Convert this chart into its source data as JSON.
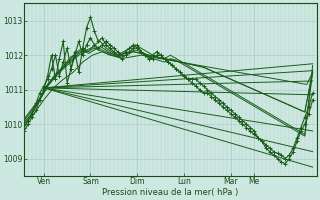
{
  "xlabel": "Pression niveau de la mer( hPa )",
  "background_color": "#cce8e0",
  "plot_bg_color": "#cce8e0",
  "grid_color": "#b0cccc",
  "line_color": "#1a5c1a",
  "ylim": [
    1008.5,
    1013.5
  ],
  "xlim": [
    0,
    150
  ],
  "day_ticks_x": [
    10,
    34,
    58,
    82,
    106,
    118
  ],
  "day_labels": [
    "Ven",
    "Sam",
    "Dim",
    "Lun",
    "Mar",
    "Me"
  ],
  "yticks": [
    1009,
    1010,
    1011,
    1012,
    1013
  ],
  "converge_x": 10,
  "converge_y": 1011.05,
  "fan_ends": [
    1011.55,
    1011.75,
    1011.25,
    1010.85,
    1009.8,
    1009.2,
    1008.75
  ],
  "fan_end_x": 148,
  "ensemble_lines": [
    {
      "pts_x": [
        0,
        2,
        4,
        6,
        8,
        10,
        12,
        14,
        16,
        18,
        20,
        22,
        24,
        26,
        28,
        30,
        32,
        34,
        36,
        38,
        40,
        42,
        44,
        46,
        48,
        50,
        52,
        54,
        56,
        58,
        60,
        62,
        64,
        66,
        68,
        70,
        72,
        74,
        76,
        78,
        80,
        82,
        84,
        86,
        88,
        90,
        92,
        94,
        96,
        98,
        100,
        102,
        104,
        106,
        108,
        110,
        112,
        114,
        116,
        118,
        120,
        122,
        124,
        126,
        128,
        130,
        132,
        134,
        136,
        138,
        140,
        142,
        144,
        146,
        148
      ],
      "pts_y": [
        1009.8,
        1010.0,
        1010.2,
        1010.4,
        1010.7,
        1011.0,
        1011.4,
        1012.0,
        1011.3,
        1011.9,
        1012.4,
        1011.2,
        1011.6,
        1012.1,
        1011.5,
        1012.2,
        1012.8,
        1013.1,
        1012.7,
        1012.4,
        1012.5,
        1012.3,
        1012.2,
        1012.1,
        1012.0,
        1011.9,
        1012.0,
        1012.1,
        1012.2,
        1012.3,
        1012.1,
        1012.0,
        1011.9,
        1011.9,
        1012.0,
        1012.0,
        1011.9,
        1011.8,
        1011.7,
        1011.6,
        1011.5,
        1011.4,
        1011.3,
        1011.3,
        1011.3,
        1011.2,
        1011.1,
        1011.0,
        1010.9,
        1010.8,
        1010.7,
        1010.6,
        1010.5,
        1010.4,
        1010.3,
        1010.2,
        1010.1,
        1010.0,
        1009.9,
        1009.8,
        1009.6,
        1009.5,
        1009.3,
        1009.2,
        1009.1,
        1009.0,
        1008.9,
        1008.85,
        1009.0,
        1009.2,
        1009.5,
        1009.8,
        1010.0,
        1010.3,
        1010.7
      ],
      "marker": true
    },
    {
      "pts_x": [
        0,
        2,
        4,
        6,
        8,
        10,
        12,
        14,
        16,
        18,
        20,
        22,
        24,
        26,
        28,
        30,
        32,
        34,
        36,
        38,
        40,
        42,
        44,
        46,
        48,
        50,
        52,
        54,
        56,
        58,
        60,
        62,
        64,
        66,
        68,
        70,
        72,
        74,
        76,
        78,
        80,
        82,
        84,
        86,
        88,
        90,
        92,
        94,
        96,
        98,
        100,
        102,
        104,
        106,
        108,
        110,
        112,
        114,
        116,
        118,
        120,
        122,
        124,
        126,
        128,
        130,
        132,
        134,
        136,
        138,
        140,
        142,
        144,
        146,
        148
      ],
      "pts_y": [
        1009.9,
        1010.1,
        1010.3,
        1010.6,
        1010.9,
        1011.1,
        1011.3,
        1011.6,
        1012.0,
        1011.4,
        1011.8,
        1012.2,
        1011.6,
        1012.0,
        1012.4,
        1012.0,
        1012.3,
        1012.5,
        1012.3,
        1012.2,
        1012.3,
        1012.4,
        1012.3,
        1012.2,
        1012.1,
        1012.0,
        1012.1,
        1012.2,
        1012.3,
        1012.2,
        1012.1,
        1012.0,
        1011.9,
        1012.0,
        1012.1,
        1012.0,
        1011.9,
        1011.8,
        1011.7,
        1011.6,
        1011.5,
        1011.4,
        1011.3,
        1011.2,
        1011.1,
        1011.0,
        1010.9,
        1010.9,
        1010.8,
        1010.7,
        1010.6,
        1010.5,
        1010.4,
        1010.3,
        1010.2,
        1010.1,
        1010.0,
        1009.9,
        1009.8,
        1009.7,
        1009.6,
        1009.5,
        1009.4,
        1009.3,
        1009.2,
        1009.15,
        1009.1,
        1009.0,
        1009.1,
        1009.3,
        1009.6,
        1009.9,
        1010.2,
        1010.5,
        1010.9
      ],
      "marker": true
    },
    {
      "pts_x": [
        0,
        3,
        6,
        9,
        12,
        15,
        18,
        21,
        24,
        27,
        30,
        33,
        36,
        39,
        42,
        45,
        48,
        51,
        54,
        57,
        60,
        63,
        66,
        69,
        72,
        75,
        78,
        81,
        84,
        87,
        90,
        93,
        96,
        99,
        102,
        105,
        108,
        111,
        114,
        117,
        120,
        123,
        126,
        129,
        132,
        135,
        138,
        141,
        144,
        148
      ],
      "pts_y": [
        1010.0,
        1010.2,
        1010.5,
        1010.8,
        1011.1,
        1011.3,
        1011.5,
        1011.7,
        1011.9,
        1012.1,
        1012.2,
        1012.1,
        1012.3,
        1012.4,
        1012.2,
        1012.1,
        1012.0,
        1012.1,
        1012.2,
        1012.3,
        1012.2,
        1012.1,
        1012.0,
        1011.9,
        1011.9,
        1012.0,
        1011.9,
        1011.8,
        1011.7,
        1011.6,
        1011.5,
        1011.4,
        1011.3,
        1011.2,
        1011.1,
        1011.0,
        1010.9,
        1010.8,
        1010.7,
        1010.6,
        1010.5,
        1010.4,
        1010.3,
        1010.2,
        1010.1,
        1010.0,
        1009.9,
        1009.8,
        1009.7,
        1011.5
      ],
      "marker": false
    },
    {
      "pts_x": [
        0,
        3,
        6,
        9,
        12,
        15,
        18,
        21,
        24,
        27,
        30,
        33,
        36,
        39,
        42,
        45,
        48,
        51,
        54,
        57,
        60,
        63,
        66,
        69,
        72,
        75,
        78,
        81,
        84,
        87,
        90,
        93,
        96,
        99,
        102,
        105,
        108,
        111,
        114,
        117,
        120,
        123,
        126,
        129,
        132,
        135,
        138,
        141,
        144,
        148
      ],
      "pts_y": [
        1010.05,
        1010.25,
        1010.55,
        1010.85,
        1011.15,
        1011.35,
        1011.55,
        1011.75,
        1011.95,
        1012.05,
        1012.15,
        1012.05,
        1012.15,
        1012.25,
        1012.15,
        1012.05,
        1011.95,
        1012.05,
        1012.1,
        1012.15,
        1012.1,
        1012.0,
        1011.9,
        1011.85,
        1011.8,
        1011.9,
        1011.85,
        1011.75,
        1011.65,
        1011.55,
        1011.45,
        1011.35,
        1011.25,
        1011.15,
        1011.05,
        1010.95,
        1010.85,
        1010.75,
        1010.65,
        1010.55,
        1010.45,
        1010.35,
        1010.25,
        1010.15,
        1010.05,
        1009.95,
        1009.85,
        1009.75,
        1009.65,
        1011.7
      ],
      "marker": false
    },
    {
      "pts_x": [
        0,
        4,
        8,
        12,
        16,
        20,
        24,
        28,
        32,
        36,
        40,
        44,
        48,
        52,
        56,
        60,
        64,
        68,
        72,
        76,
        80,
        84,
        88,
        92,
        96,
        100,
        104,
        108,
        112,
        116,
        120,
        124,
        128,
        132,
        136,
        140,
        144,
        148
      ],
      "pts_y": [
        1010.1,
        1010.4,
        1010.7,
        1011.1,
        1011.4,
        1011.6,
        1011.8,
        1012.0,
        1012.1,
        1012.2,
        1012.1,
        1012.0,
        1011.95,
        1012.0,
        1012.1,
        1012.05,
        1012.0,
        1011.95,
        1011.9,
        1011.85,
        1011.8,
        1011.75,
        1011.7,
        1011.65,
        1011.55,
        1011.45,
        1011.35,
        1011.25,
        1011.15,
        1011.05,
        1010.95,
        1010.85,
        1010.75,
        1010.65,
        1010.55,
        1010.45,
        1010.35,
        1011.5
      ],
      "marker": false
    },
    {
      "pts_x": [
        0,
        4,
        8,
        12,
        16,
        20,
        24,
        28,
        32,
        36,
        40,
        44,
        48,
        52,
        56,
        60,
        64,
        68,
        72,
        76,
        80,
        84,
        88,
        92,
        96,
        100,
        104,
        108,
        112,
        116,
        120,
        124,
        128,
        132,
        136,
        140,
        144,
        148
      ],
      "pts_y": [
        1010.15,
        1010.45,
        1010.75,
        1011.15,
        1011.45,
        1011.65,
        1011.85,
        1012.05,
        1012.15,
        1012.25,
        1012.15,
        1012.05,
        1012.0,
        1012.05,
        1012.1,
        1012.05,
        1012.0,
        1011.95,
        1011.9,
        1011.85,
        1011.8,
        1011.75,
        1011.7,
        1011.65,
        1011.55,
        1011.45,
        1011.35,
        1011.25,
        1011.15,
        1011.05,
        1010.95,
        1010.85,
        1010.75,
        1010.65,
        1010.55,
        1010.45,
        1010.35,
        1011.55
      ],
      "marker": false
    },
    {
      "pts_x": [
        0,
        5,
        10,
        15,
        20,
        25,
        30,
        35,
        40,
        45,
        50,
        55,
        60,
        65,
        70,
        75,
        80,
        85,
        90,
        95,
        100,
        105,
        110,
        115,
        120,
        125,
        130,
        135,
        140,
        145,
        148
      ],
      "pts_y": [
        1010.0,
        1010.3,
        1010.7,
        1011.05,
        1011.3,
        1011.5,
        1011.8,
        1012.0,
        1012.1,
        1012.0,
        1011.9,
        1011.95,
        1012.0,
        1011.95,
        1011.9,
        1011.85,
        1011.8,
        1011.75,
        1011.7,
        1011.65,
        1011.6,
        1011.55,
        1011.5,
        1011.45,
        1011.4,
        1011.35,
        1011.3,
        1011.25,
        1011.2,
        1011.15,
        1011.5
      ],
      "marker": false
    }
  ]
}
